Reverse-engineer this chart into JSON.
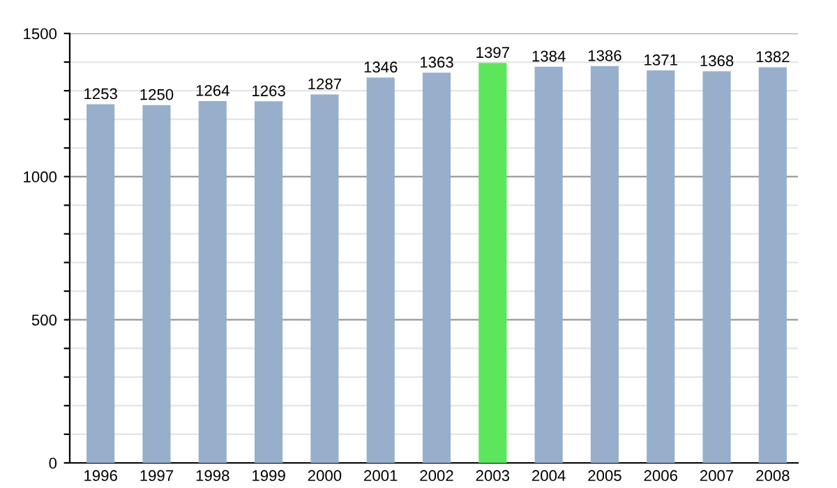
{
  "chart_data": {
    "type": "bar",
    "categories": [
      "1996",
      "1997",
      "1998",
      "1999",
      "2000",
      "2001",
      "2002",
      "2003",
      "2004",
      "2005",
      "2006",
      "2007",
      "2008"
    ],
    "values": [
      1253,
      1250,
      1264,
      1263,
      1287,
      1346,
      1363,
      1397,
      1384,
      1386,
      1371,
      1368,
      1382
    ],
    "colors": [
      "#97afcb",
      "#97afcb",
      "#97afcb",
      "#97afcb",
      "#97afcb",
      "#97afcb",
      "#97afcb",
      "#5ce65c",
      "#97afcb",
      "#97afcb",
      "#97afcb",
      "#97afcb",
      "#97afcb"
    ],
    "data_labels": true,
    "ylim": [
      0,
      1500
    ],
    "yticks": [
      0,
      {
        "value": 100,
        "label": null
      },
      {
        "value": 200,
        "label": null
      },
      {
        "value": 300,
        "label": null
      },
      {
        "value": 400,
        "label": null
      },
      500,
      {
        "value": 600,
        "label": null
      },
      {
        "value": 700,
        "label": null
      },
      {
        "value": 800,
        "label": null
      },
      {
        "value": 900,
        "label": null
      },
      1000,
      {
        "value": 1100,
        "label": null
      },
      {
        "value": 1200,
        "label": null
      },
      {
        "value": 1300,
        "label": null
      },
      {
        "value": 1400,
        "label": null
      },
      1500
    ],
    "grid": "y"
  }
}
